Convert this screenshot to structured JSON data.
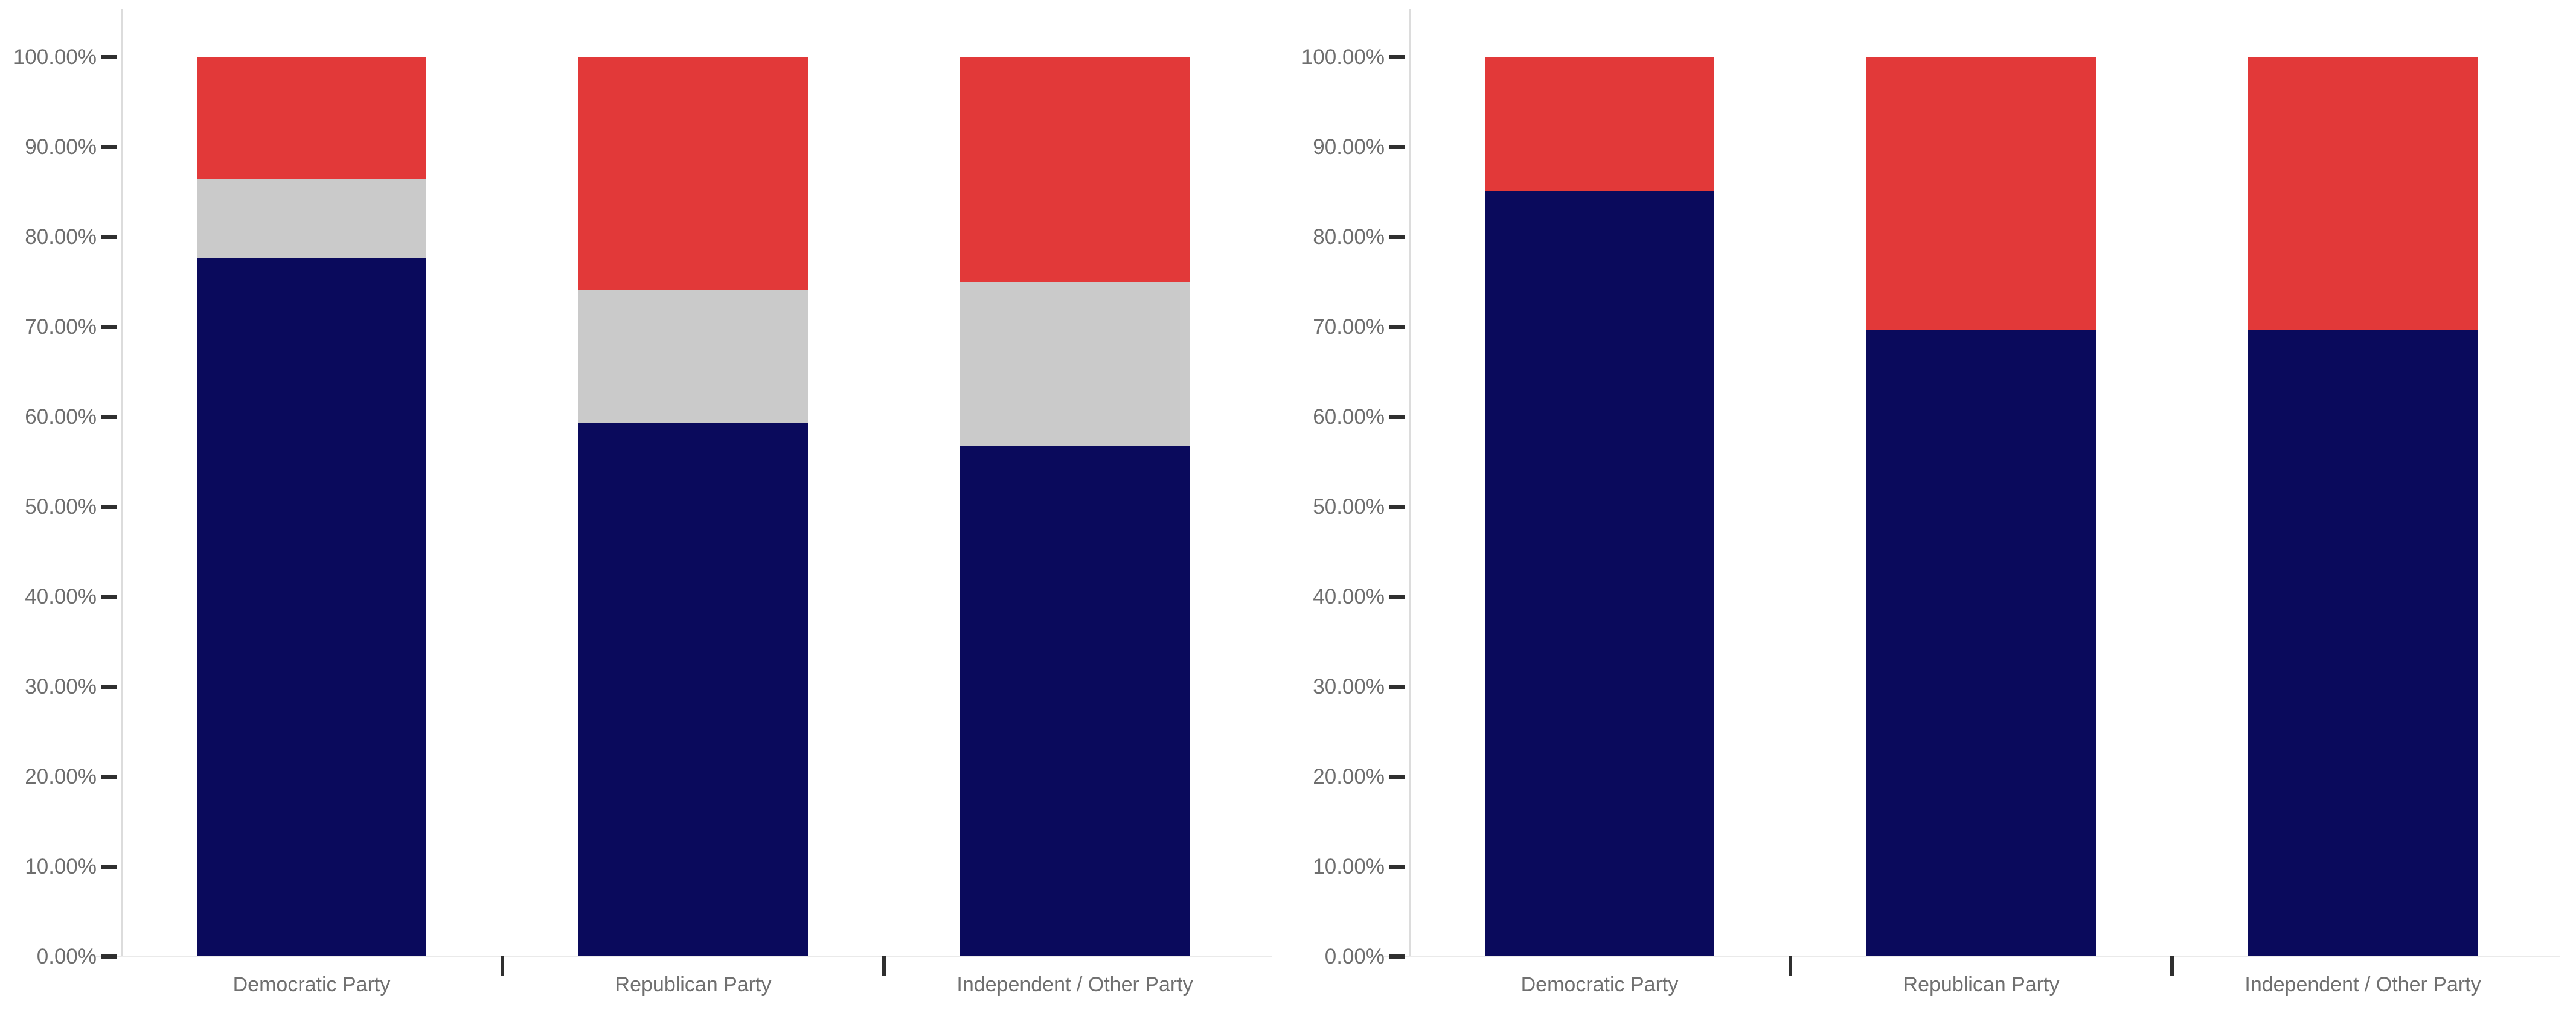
{
  "page": {
    "background": "#ffffff"
  },
  "colors": {
    "navy": "#0A0A5C",
    "gray": "#CACACA",
    "red": "#E23939",
    "tick_label": "#6E6E6E",
    "category_label": "#707070",
    "axis_line": "#DCDCDC",
    "tick_mark": "#2F2F2F",
    "baseline": "#EAEAEA"
  },
  "y_axis": {
    "min": 0,
    "max": 100,
    "step": 10,
    "tick_labels": [
      "0.00%",
      "10.00%",
      "20.00%",
      "30.00%",
      "40.00%",
      "50.00%",
      "60.00%",
      "70.00%",
      "80.00%",
      "90.00%",
      "100.00%"
    ]
  },
  "categories": [
    "Democratic Party",
    "Republican Party",
    "Independent / Other Party"
  ],
  "chart_data": [
    {
      "type": "bar",
      "subtype": "100%-stacked-column",
      "title": "",
      "xlabel": "",
      "ylabel": "",
      "ylim": [
        0,
        100
      ],
      "grid": false,
      "legend": "none",
      "categories": [
        "Democratic Party",
        "Republican Party",
        "Independent / Other Party"
      ],
      "series": [
        {
          "name": "Navy (bottom segment)",
          "color_key": "navy",
          "values": [
            77.6,
            59.3,
            56.8
          ]
        },
        {
          "name": "Gray (middle segment)",
          "color_key": "gray",
          "values": [
            8.8,
            14.7,
            18.2
          ]
        },
        {
          "name": "Red (top segment)",
          "color_key": "red",
          "values": [
            13.6,
            26.0,
            25.0
          ]
        }
      ]
    },
    {
      "type": "bar",
      "subtype": "100%-stacked-column",
      "title": "",
      "xlabel": "",
      "ylabel": "",
      "ylim": [
        0,
        100
      ],
      "grid": false,
      "legend": "none",
      "categories": [
        "Democratic Party",
        "Republican Party",
        "Independent / Other Party"
      ],
      "series": [
        {
          "name": "Navy (bottom segment)",
          "color_key": "navy",
          "values": [
            85.1,
            69.6,
            69.6
          ]
        },
        {
          "name": "Red (top segment)",
          "color_key": "red",
          "values": [
            14.9,
            30.4,
            30.4
          ]
        }
      ]
    }
  ]
}
